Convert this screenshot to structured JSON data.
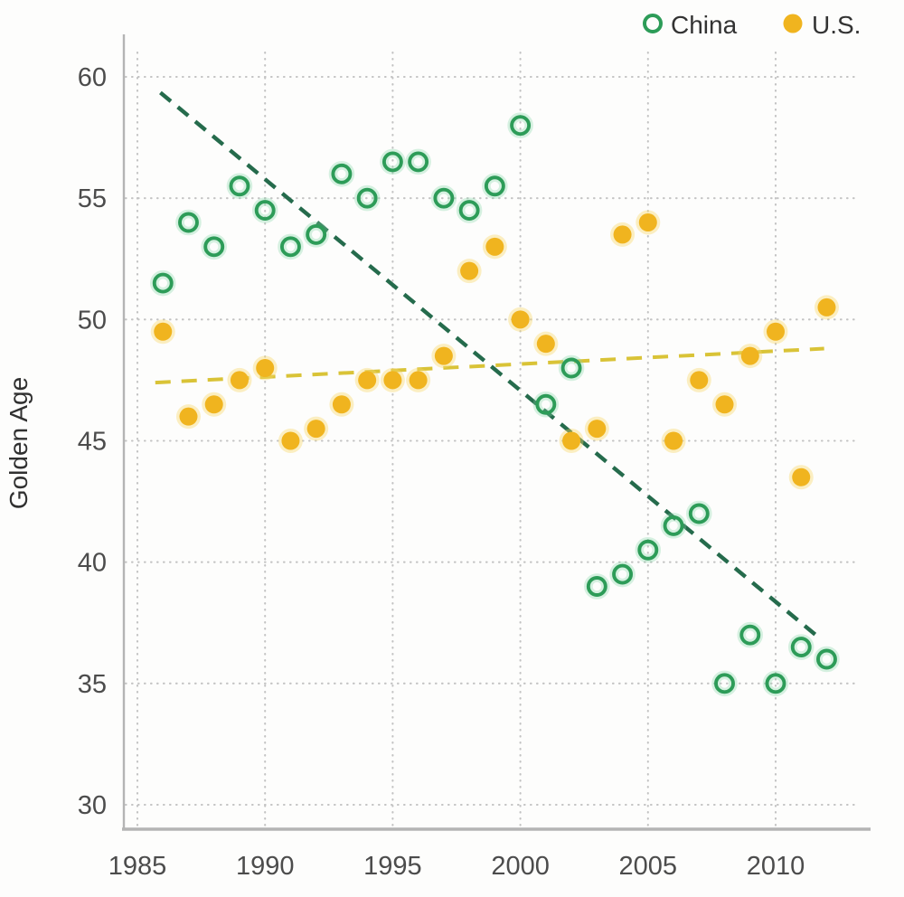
{
  "chart_data": {
    "type": "scatter",
    "title": "",
    "xlabel": "",
    "ylabel": "Golden Age",
    "x_ticks": [
      1985,
      1990,
      1995,
      2000,
      2005,
      2010
    ],
    "y_ticks": [
      60,
      55,
      50,
      45,
      40,
      35,
      30
    ],
    "xlim": [
      1984.2,
      2013.6
    ],
    "ylim": [
      29.1,
      61.1
    ],
    "grid": "dotted",
    "legend_position": "top-right",
    "series": [
      {
        "name": "China",
        "marker": "open-circle",
        "color": "#2d9c58",
        "halo": "rgba(130,215,166,0.32)",
        "points": [
          [
            1986,
            51.5
          ],
          [
            1987,
            54
          ],
          [
            1988,
            53
          ],
          [
            1989,
            55.5
          ],
          [
            1990,
            54.5
          ],
          [
            1991,
            53
          ],
          [
            1992,
            53.5
          ],
          [
            1993,
            56
          ],
          [
            1994,
            55
          ],
          [
            1995,
            56.5
          ],
          [
            1996,
            56.5
          ],
          [
            1997,
            55
          ],
          [
            1998,
            54.5
          ],
          [
            1999,
            55.5
          ],
          [
            2000,
            58
          ],
          [
            2001,
            46.5
          ],
          [
            2002,
            48
          ],
          [
            2003,
            39
          ],
          [
            2004,
            39.5
          ],
          [
            2005,
            40.5
          ],
          [
            2006,
            41.5
          ],
          [
            2007,
            42
          ],
          [
            2008,
            35
          ],
          [
            2009,
            37
          ],
          [
            2010,
            35
          ],
          [
            2011,
            36.5
          ],
          [
            2012,
            36
          ]
        ]
      },
      {
        "name": "U.S.",
        "marker": "filled-circle",
        "color": "#f0b41f",
        "halo": "rgba(247,214,105,0.40)",
        "points": [
          [
            1986,
            49.5
          ],
          [
            1987,
            46
          ],
          [
            1988,
            46.5
          ],
          [
            1989,
            47.5
          ],
          [
            1990,
            48
          ],
          [
            1991,
            45
          ],
          [
            1992,
            45.5
          ],
          [
            1993,
            46.5
          ],
          [
            1994,
            47.5
          ],
          [
            1995,
            47.5
          ],
          [
            1996,
            47.5
          ],
          [
            1997,
            48.5
          ],
          [
            1998,
            52
          ],
          [
            1999,
            53
          ],
          [
            2000,
            50
          ],
          [
            2001,
            49
          ],
          [
            2002,
            45
          ],
          [
            2003,
            45.5
          ],
          [
            2004,
            53.5
          ],
          [
            2005,
            54
          ],
          [
            2006,
            45
          ],
          [
            2007,
            47.5
          ],
          [
            2008,
            46.5
          ],
          [
            2009,
            48.5
          ],
          [
            2010,
            49.5
          ],
          [
            2011,
            43.5
          ],
          [
            2012,
            50.5
          ]
        ]
      }
    ],
    "trend_lines": [
      {
        "series": "China",
        "style": "dashed",
        "color": "#256b4c",
        "from": [
          1985.9,
          59.35
        ],
        "to": [
          2011.8,
          36.8
        ]
      },
      {
        "series": "U.S.",
        "style": "dashed",
        "color": "#d9c337",
        "from": [
          1985.7,
          47.4
        ],
        "to": [
          2011.9,
          48.8
        ]
      }
    ]
  }
}
